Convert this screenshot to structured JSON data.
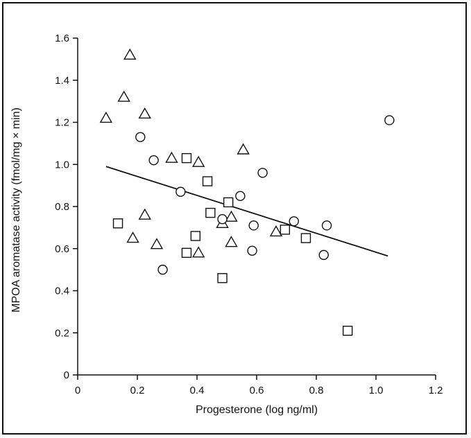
{
  "chart_data": {
    "type": "scatter",
    "xlabel": "Progesterone (log ng/ml)",
    "ylabel": "MPOA aromatase activity (fmol/mg × min)",
    "xlim": [
      0,
      1.2
    ],
    "ylim": [
      0,
      1.6
    ],
    "xticks": [
      0,
      0.2,
      0.4,
      0.6,
      0.8,
      1.0,
      1.2
    ],
    "xtick_labels": [
      "0",
      "0.2",
      "0.4",
      "0.6",
      "0.8",
      "1.0",
      "1.2"
    ],
    "yticks": [
      0,
      0.2,
      0.4,
      0.6,
      0.8,
      1.0,
      1.2,
      1.4,
      1.6
    ],
    "ytick_labels": [
      "0",
      "0.2",
      "0.4",
      "0.6",
      "0.8",
      "1.0",
      "1.2",
      "1.4",
      "1.6"
    ],
    "grid": false,
    "legend": "none",
    "series": [
      {
        "marker": "triangle",
        "points": [
          [
            0.095,
            1.22
          ],
          [
            0.155,
            1.32
          ],
          [
            0.175,
            1.52
          ],
          [
            0.225,
            1.24
          ],
          [
            0.315,
            1.03
          ],
          [
            0.405,
            1.01
          ],
          [
            0.555,
            1.07
          ],
          [
            0.225,
            0.76
          ],
          [
            0.185,
            0.65
          ],
          [
            0.265,
            0.62
          ],
          [
            0.405,
            0.58
          ],
          [
            0.485,
            0.72
          ],
          [
            0.515,
            0.75
          ],
          [
            0.515,
            0.63
          ],
          [
            0.665,
            0.68
          ]
        ]
      },
      {
        "marker": "circle",
        "points": [
          [
            0.21,
            1.13
          ],
          [
            0.255,
            1.02
          ],
          [
            0.345,
            0.87
          ],
          [
            0.485,
            0.74
          ],
          [
            0.545,
            0.85
          ],
          [
            0.62,
            0.96
          ],
          [
            0.59,
            0.71
          ],
          [
            0.585,
            0.59
          ],
          [
            0.725,
            0.73
          ],
          [
            0.835,
            0.71
          ],
          [
            0.825,
            0.57
          ],
          [
            0.285,
            0.5
          ],
          [
            1.045,
            1.21
          ]
        ]
      },
      {
        "marker": "square",
        "points": [
          [
            0.135,
            0.72
          ],
          [
            0.365,
            1.03
          ],
          [
            0.435,
            0.92
          ],
          [
            0.445,
            0.77
          ],
          [
            0.505,
            0.82
          ],
          [
            0.395,
            0.66
          ],
          [
            0.365,
            0.58
          ],
          [
            0.485,
            0.46
          ],
          [
            0.695,
            0.69
          ],
          [
            0.765,
            0.65
          ],
          [
            0.905,
            0.21
          ]
        ]
      }
    ],
    "trendline": {
      "x": [
        0.095,
        1.04
      ],
      "y": [
        0.99,
        0.565
      ]
    },
    "colors": {
      "ink": "#111111",
      "marker_fill": "#ffffff",
      "background": "#ffffff"
    }
  }
}
